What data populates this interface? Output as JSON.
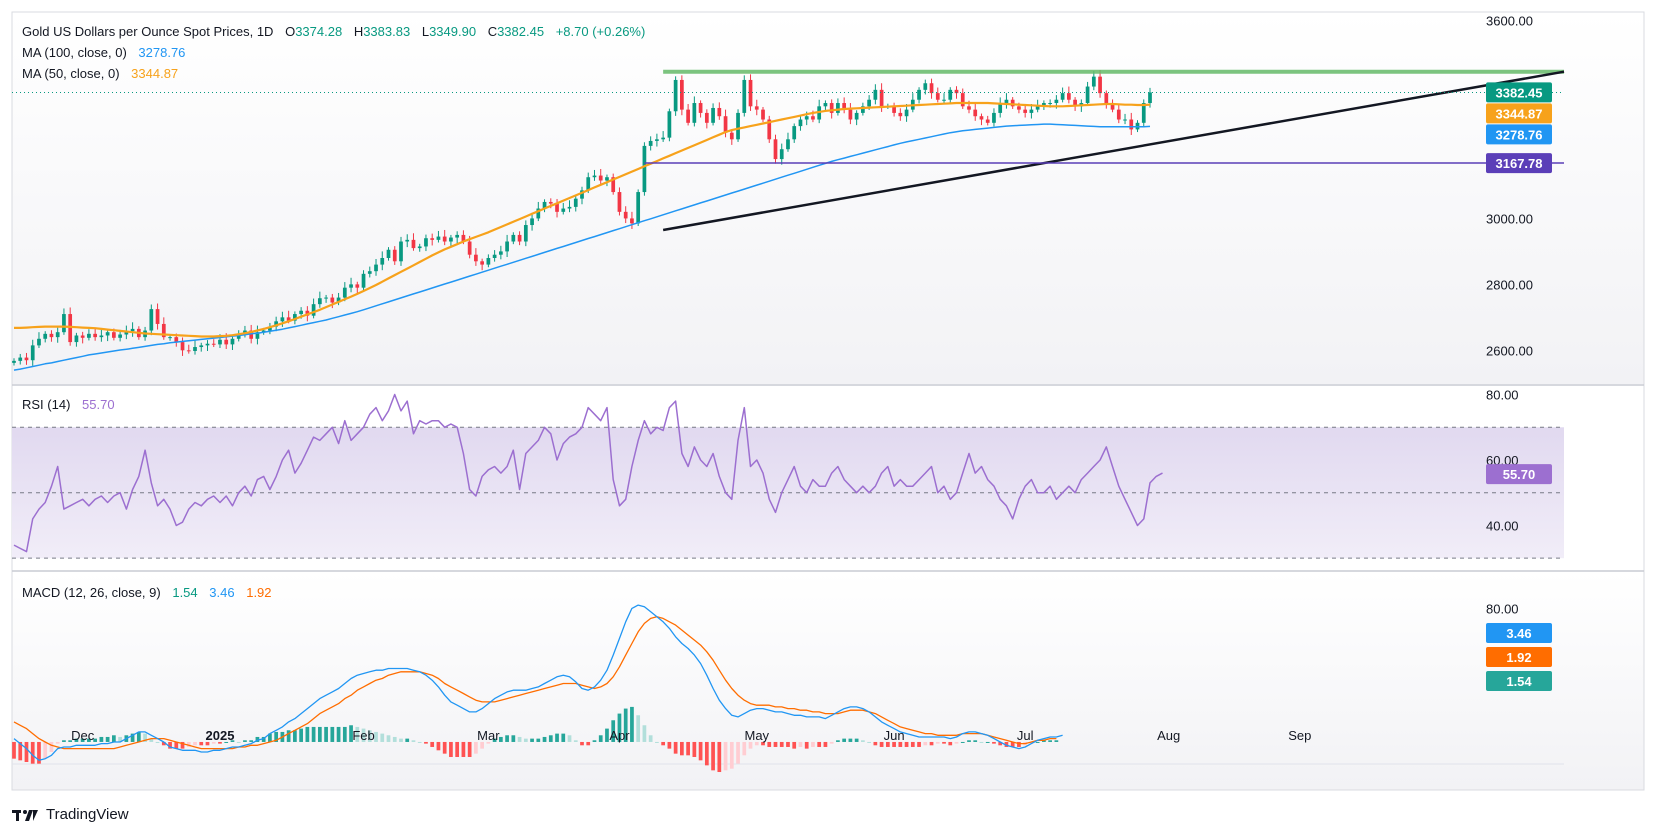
{
  "header": {
    "symbol": "Gold US Dollars per Ounce Spot Prices, 1D",
    "o_label": "O",
    "o_value": "3374.28",
    "h_label": "H",
    "h_value": "3383.83",
    "l_label": "L",
    "l_value": "3349.90",
    "c_label": "C",
    "c_value": "3382.45",
    "change": "+8.70 (+0.26%)",
    "ma100_label": "MA (100, close, 0)",
    "ma100_value": "3278.76",
    "ma50_label": "MA (50, close, 0)",
    "ma50_value": "3344.87"
  },
  "rsi_panel": {
    "label": "RSI (14)",
    "value": "55.70"
  },
  "macd_panel": {
    "label": "MACD (12, 26, close, 9)",
    "v1": "1.54",
    "v2": "3.46",
    "v3": "1.92"
  },
  "footer": {
    "brand": "TradingView",
    "logo_icon": "tradingview-logo-icon"
  },
  "colors": {
    "up": "#089981",
    "down": "#f23645",
    "ma50": "#f7a21b",
    "ma100": "#2196f3",
    "rsi": "#9c6fd0",
    "macd": "#2196f3",
    "signal": "#ff6d00",
    "resistance": "#66bb6a",
    "support": "#131722",
    "level": "#5b3fb8"
  },
  "chart_data": [
    {
      "type": "line",
      "title": "Gold US Dollars per Ounce Spot Prices, 1D",
      "x_ticks": [
        "Dec",
        "2025",
        "Feb",
        "Mar",
        "Apr",
        "May",
        "Jun",
        "Jul",
        "Aug",
        "Sep"
      ],
      "y_ticks": [
        "2600.00",
        "2800.00",
        "3000.00",
        "3600.00"
      ],
      "ylim": [
        2510,
        3620
      ],
      "price_tags": [
        "3382.45",
        "3344.87",
        "3278.76",
        "3167.78"
      ],
      "x_start": "2024-11-15",
      "close": [
        2568,
        2578,
        2570,
        2615,
        2635,
        2650,
        2640,
        2655,
        2710,
        2625,
        2645,
        2638,
        2650,
        2640,
        2645,
        2655,
        2638,
        2648,
        2658,
        2665,
        2640,
        2660,
        2725,
        2680,
        2640,
        2640,
        2625,
        2600,
        2598,
        2610,
        2615,
        2620,
        2618,
        2632,
        2618,
        2635,
        2650,
        2660,
        2635,
        2655,
        2660,
        2672,
        2688,
        2700,
        2690,
        2710,
        2720,
        2705,
        2740,
        2758,
        2760,
        2745,
        2760,
        2790,
        2800,
        2790,
        2832,
        2840,
        2860,
        2880,
        2905,
        2870,
        2930,
        2935,
        2910,
        2915,
        2940,
        2935,
        2945,
        2930,
        2942,
        2950,
        2930,
        2890,
        2870,
        2860,
        2880,
        2890,
        2900,
        2930,
        2950,
        2930,
        2980,
        3000,
        3030,
        3050,
        3045,
        3020,
        3030,
        3035,
        3060,
        3085,
        3125,
        3130,
        3115,
        3125,
        3080,
        3020,
        3000,
        2985,
        3080,
        3220,
        3235,
        3240,
        3245,
        3325,
        3420,
        3330,
        3290,
        3350,
        3320,
        3290,
        3335,
        3310,
        3260,
        3240,
        3320,
        3420,
        3340,
        3330,
        3300,
        3240,
        3180,
        3210,
        3240,
        3280,
        3300,
        3310,
        3300,
        3340,
        3350,
        3320,
        3350,
        3330,
        3300,
        3320,
        3340,
        3360,
        3390,
        3340,
        3340,
        3320,
        3310,
        3330,
        3360,
        3390,
        3410,
        3380,
        3360,
        3360,
        3390,
        3380,
        3340,
        3330,
        3310,
        3300,
        3290,
        3320,
        3350,
        3360,
        3340,
        3330,
        3320,
        3330,
        3340,
        3350,
        3350,
        3360,
        3380,
        3360,
        3340,
        3350,
        3400,
        3430,
        3380,
        3350,
        3330,
        3300,
        3300,
        3270,
        3290,
        3350,
        3382
      ],
      "ma50": [
        2668,
        2668,
        2669,
        2670,
        2671,
        2672,
        2672,
        2672,
        2672,
        2671,
        2670,
        2669,
        2668,
        2667,
        2665,
        2663,
        2661,
        2659,
        2657,
        2655,
        2653,
        2651,
        2650,
        2649,
        2648,
        2647,
        2646,
        2645,
        2644,
        2643,
        2642,
        2642,
        2642,
        2643,
        2644,
        2646,
        2649,
        2652,
        2656,
        2660,
        2665,
        2670,
        2676,
        2682,
        2688,
        2695,
        2702,
        2709,
        2716,
        2723,
        2731,
        2739,
        2747,
        2755,
        2763,
        2771,
        2780,
        2789,
        2798,
        2808,
        2818,
        2828,
        2838,
        2848,
        2858,
        2868,
        2878,
        2888,
        2897,
        2906,
        2914,
        2922,
        2930,
        2937,
        2944,
        2951,
        2958,
        2966,
        2974,
        2982,
        2990,
        2998,
        3006,
        3014,
        3022,
        3030,
        3038,
        3046,
        3054,
        3062,
        3070,
        3078,
        3086,
        3094,
        3102,
        3110,
        3118,
        3126,
        3134,
        3142,
        3150,
        3158,
        3166,
        3174,
        3182,
        3190,
        3198,
        3206,
        3214,
        3222,
        3230,
        3238,
        3246,
        3254,
        3262,
        3268,
        3272,
        3276,
        3280,
        3284,
        3288,
        3292,
        3296,
        3300,
        3304,
        3308,
        3312,
        3316,
        3320,
        3323,
        3326,
        3328,
        3330,
        3332,
        3333,
        3334,
        3335,
        3336,
        3337,
        3338,
        3339,
        3340,
        3341,
        3342,
        3343,
        3344,
        3345,
        3346,
        3347,
        3348,
        3349,
        3350,
        3350,
        3350,
        3350,
        3350,
        3350,
        3349,
        3348,
        3347,
        3346,
        3345,
        3344,
        3343,
        3342,
        3341,
        3340,
        3340,
        3340,
        3341,
        3342,
        3343,
        3344,
        3345,
        3346,
        3347,
        3347,
        3346,
        3345,
        3345,
        3344,
        3344,
        3345
      ],
      "ma100": [
        2540,
        2543,
        2547,
        2551,
        2555,
        2559,
        2562,
        2566,
        2570,
        2574,
        2578,
        2582,
        2586,
        2589,
        2592,
        2595,
        2598,
        2601,
        2603,
        2606,
        2609,
        2612,
        2615,
        2618,
        2620,
        2623,
        2625,
        2627,
        2629,
        2631,
        2633,
        2635,
        2637,
        2639,
        2641,
        2643,
        2645,
        2647,
        2650,
        2652,
        2655,
        2658,
        2661,
        2664,
        2668,
        2672,
        2676,
        2680,
        2684,
        2688,
        2692,
        2697,
        2702,
        2707,
        2712,
        2717,
        2723,
        2729,
        2735,
        2741,
        2747,
        2753,
        2759,
        2765,
        2771,
        2777,
        2783,
        2789,
        2795,
        2801,
        2807,
        2813,
        2819,
        2825,
        2831,
        2837,
        2843,
        2849,
        2855,
        2861,
        2867,
        2873,
        2879,
        2885,
        2891,
        2897,
        2903,
        2909,
        2915,
        2921,
        2927,
        2933,
        2939,
        2945,
        2951,
        2957,
        2963,
        2969,
        2975,
        2981,
        2987,
        2993,
        2999,
        3005,
        3011,
        3017,
        3023,
        3029,
        3035,
        3041,
        3047,
        3053,
        3059,
        3065,
        3071,
        3077,
        3083,
        3089,
        3095,
        3101,
        3107,
        3113,
        3119,
        3125,
        3131,
        3137,
        3143,
        3149,
        3155,
        3161,
        3167,
        3173,
        3178,
        3183,
        3188,
        3193,
        3198,
        3203,
        3208,
        3213,
        3218,
        3223,
        3228,
        3232,
        3236,
        3240,
        3244,
        3248,
        3252,
        3256,
        3260,
        3263,
        3266,
        3268,
        3270,
        3272,
        3274,
        3276,
        3278,
        3280,
        3281,
        3282,
        3283,
        3284,
        3285,
        3286,
        3286,
        3285,
        3284,
        3283,
        3282,
        3281,
        3280,
        3279,
        3278,
        3278,
        3278,
        3278,
        3278,
        3278,
        3278,
        3278,
        3279
      ],
      "lines": [
        {
          "name": "resistance",
          "from": [
            104,
            3445
          ],
          "to": [
            187,
            3445
          ]
        },
        {
          "name": "support",
          "from": [
            104,
            2965
          ],
          "to": [
            187,
            3445
          ]
        },
        {
          "name": "level",
          "from": [
            101,
            3168
          ],
          "to": [
            250,
            3168
          ]
        }
      ]
    },
    {
      "type": "line",
      "title": "RSI (14)",
      "ylim": [
        27,
        82
      ],
      "y_ticks": [
        "40.00",
        "60.00",
        "80.00"
      ],
      "band": [
        30,
        70
      ],
      "mid": 50,
      "values": [
        34,
        33,
        32,
        42,
        45,
        47,
        52,
        58,
        45,
        46,
        47,
        48,
        46,
        48,
        49,
        47,
        49,
        50,
        45,
        51,
        55,
        63,
        53,
        46,
        48,
        45,
        40,
        41,
        45,
        47,
        46,
        48,
        49,
        47,
        49,
        46,
        50,
        52,
        49,
        54,
        55,
        51,
        55,
        60,
        63,
        56,
        59,
        63,
        67,
        66,
        68,
        70,
        65,
        72,
        66,
        68,
        70,
        74,
        76,
        72,
        75,
        80,
        75,
        78,
        68,
        72,
        71,
        72,
        72,
        70,
        71,
        70,
        62,
        51,
        49,
        55,
        57,
        58,
        56,
        58,
        63,
        51,
        62,
        64,
        66,
        70,
        68,
        60,
        65,
        67,
        68,
        70,
        76,
        74,
        72,
        76,
        54,
        46,
        48,
        58,
        66,
        72,
        68,
        70,
        69,
        76,
        78,
        62,
        58,
        64,
        60,
        58,
        62,
        55,
        50,
        48,
        66,
        76,
        58,
        60,
        56,
        48,
        44,
        50,
        54,
        58,
        52,
        50,
        54,
        52,
        52,
        56,
        58,
        54,
        52,
        50,
        52,
        50,
        52,
        56,
        58,
        52,
        54,
        52,
        52,
        54,
        56,
        58,
        50,
        52,
        48,
        50,
        56,
        62,
        56,
        58,
        54,
        52,
        48,
        46,
        42,
        48,
        52,
        54,
        50,
        50,
        52,
        48,
        50,
        52,
        50,
        54,
        56,
        58,
        60,
        64,
        58,
        52,
        48,
        44,
        40,
        42,
        53,
        55,
        56
      ]
    },
    {
      "type": "line",
      "title": "MACD (12, 26, close, 9)",
      "ylim": [
        -12,
        100
      ],
      "y_ticks": [
        "80.00"
      ],
      "price_tags": [
        "3.46",
        "1.92",
        "1.54"
      ],
      "macd": [
        2,
        -1,
        -4,
        -8,
        -11,
        -10,
        -8,
        -4,
        -3,
        -3,
        -2,
        -2,
        -2,
        -2,
        -1,
        -1,
        0,
        0,
        2,
        4,
        6,
        6,
        4,
        2,
        0,
        -3,
        -4,
        -5,
        -5,
        -5,
        -6,
        -6,
        -5,
        -5,
        -4,
        -3,
        -3,
        -2,
        -1,
        1,
        2,
        5,
        7,
        9,
        12,
        14,
        17,
        20,
        23,
        26,
        28,
        30,
        32,
        35,
        38,
        40,
        41,
        42,
        43,
        43,
        44,
        44,
        44,
        44,
        43,
        42,
        40,
        37,
        33,
        28,
        24,
        22,
        20,
        18,
        18,
        20,
        23,
        26,
        28,
        30,
        31,
        31,
        31,
        32,
        33,
        35,
        37,
        39,
        40,
        39,
        36,
        32,
        31,
        33,
        37,
        43,
        52,
        62,
        72,
        80,
        82,
        81,
        78,
        75,
        72,
        68,
        63,
        59,
        56,
        52,
        47,
        40,
        32,
        25,
        20,
        16,
        15,
        17,
        19,
        20,
        20,
        19,
        18,
        18,
        17,
        16,
        16,
        15,
        15,
        15,
        14,
        16,
        18,
        20,
        21,
        21,
        20,
        18,
        15,
        12,
        10,
        8,
        6,
        5,
        4,
        3,
        3,
        3,
        3,
        3,
        2,
        3,
        5,
        6,
        6,
        5,
        4,
        2,
        0,
        -2,
        -3,
        -4,
        -3,
        -1,
        1,
        2,
        3,
        3,
        4
      ],
      "signal": [
        12,
        10,
        8,
        5,
        2,
        0,
        -2,
        -3,
        -4,
        -4,
        -4,
        -4,
        -4,
        -4,
        -4,
        -4,
        -4,
        -3,
        -2,
        -1,
        0,
        1,
        2,
        2,
        2,
        1,
        0,
        -1,
        -2,
        -3,
        -4,
        -4,
        -4,
        -4,
        -4,
        -4,
        -3,
        -3,
        -2,
        -2,
        -1,
        0,
        1,
        3,
        5,
        7,
        9,
        11,
        14,
        17,
        19,
        21,
        23,
        26,
        28,
        31,
        33,
        35,
        37,
        38,
        40,
        41,
        42,
        42,
        42,
        42,
        41,
        40,
        38,
        35,
        33,
        31,
        29,
        27,
        25,
        24,
        24,
        24,
        25,
        26,
        27,
        28,
        29,
        30,
        31,
        32,
        33,
        34,
        35,
        35,
        35,
        34,
        33,
        32,
        33,
        35,
        39,
        45,
        52,
        59,
        66,
        71,
        74,
        75,
        74,
        72,
        70,
        67,
        64,
        61,
        58,
        54,
        49,
        43,
        37,
        32,
        28,
        25,
        23,
        22,
        22,
        22,
        21,
        21,
        20,
        20,
        19,
        19,
        18,
        18,
        17,
        17,
        17,
        18,
        19,
        19,
        19,
        18,
        17,
        15,
        13,
        11,
        9,
        8,
        7,
        6,
        5,
        5,
        4,
        4,
        4,
        4,
        5,
        5,
        5,
        5,
        4,
        3,
        2,
        1,
        0,
        -1,
        -1,
        0,
        1,
        1,
        2,
        2
      ],
      "histogram_note": "macd minus signal"
    }
  ]
}
